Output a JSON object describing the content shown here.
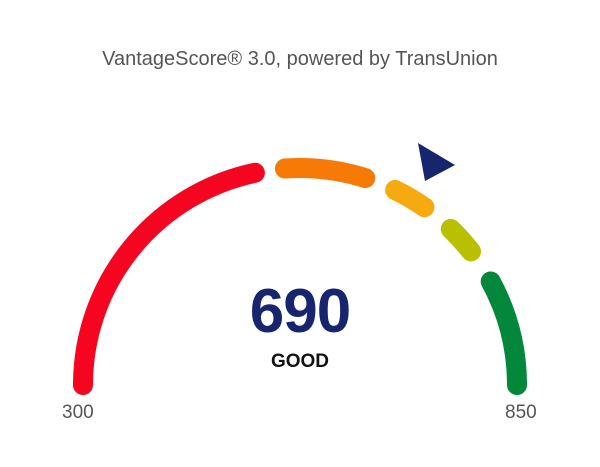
{
  "title": "VantageScore® 3.0, powered by TransUnion",
  "gauge": {
    "min": 300,
    "max": 850,
    "min_label": "300",
    "max_label": "850",
    "score": "690",
    "rating": "GOOD",
    "pointer_color": "#17246e",
    "segment_colors": [
      "#f5051f",
      "#f87a06",
      "#f5ab10",
      "#b9c000",
      "#03873a"
    ]
  }
}
